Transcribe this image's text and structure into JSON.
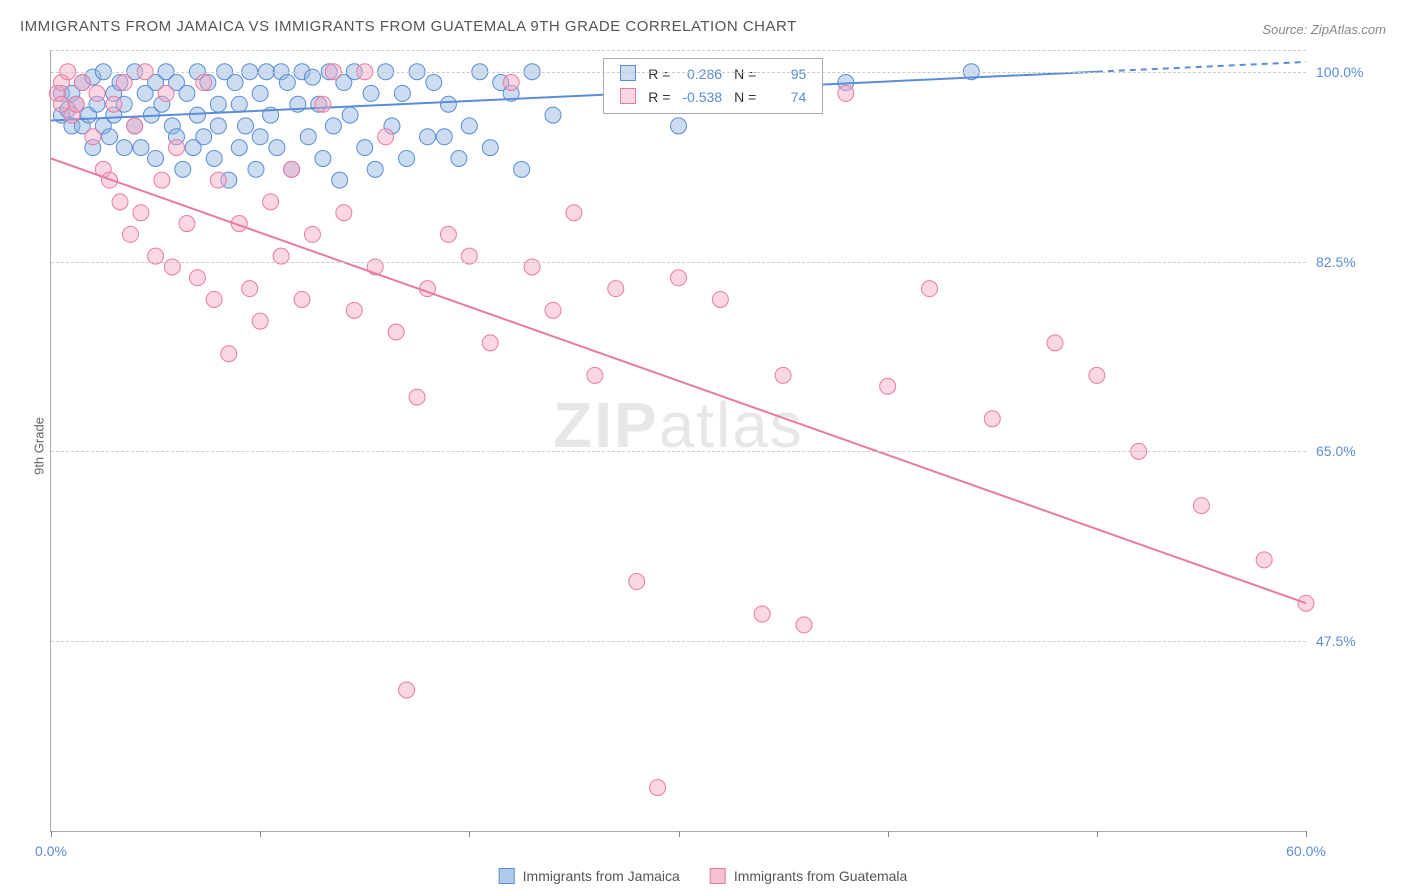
{
  "title": "IMMIGRANTS FROM JAMAICA VS IMMIGRANTS FROM GUATEMALA 9TH GRADE CORRELATION CHART",
  "source_label": "Source:",
  "source_name": "ZipAtlas.com",
  "ylabel": "9th Grade",
  "watermark": {
    "bold": "ZIP",
    "rest": "atlas"
  },
  "chart": {
    "type": "scatter",
    "xlim": [
      0,
      60
    ],
    "ylim": [
      30,
      102
    ],
    "x_ticks": [
      0,
      10,
      20,
      30,
      40,
      50,
      60
    ],
    "x_tick_labels_shown": {
      "0": "0.0%",
      "60": "60.0%"
    },
    "y_gridlines": [
      47.5,
      65.0,
      82.5,
      100.0
    ],
    "y_tick_labels": [
      "47.5%",
      "65.0%",
      "82.5%",
      "100.0%"
    ],
    "background_color": "#ffffff",
    "grid_color": "#cccccc",
    "axis_color": "#aaaaaa",
    "tick_label_color": "#5b8dd6",
    "marker_radius": 8,
    "marker_opacity": 0.45,
    "line_width": 2,
    "series": [
      {
        "name": "Immigrants from Jamaica",
        "color": "#8db3e2",
        "stroke": "#5b8dd6",
        "fill": "rgba(141,179,226,0.45)",
        "R": 0.286,
        "N": 95,
        "trend": {
          "x1": 0,
          "y1": 95.5,
          "x2": 50,
          "y2": 100,
          "dash_extend_to": 60
        },
        "points": [
          [
            0.5,
            96
          ],
          [
            0.5,
            98
          ],
          [
            0.8,
            96.5
          ],
          [
            1,
            98
          ],
          [
            1,
            95
          ],
          [
            1.2,
            97
          ],
          [
            1.5,
            99
          ],
          [
            1.5,
            95
          ],
          [
            1.8,
            96
          ],
          [
            2,
            99.5
          ],
          [
            2,
            93
          ],
          [
            2.2,
            97
          ],
          [
            2.5,
            95
          ],
          [
            2.5,
            100
          ],
          [
            2.8,
            94
          ],
          [
            3,
            98
          ],
          [
            3,
            96
          ],
          [
            3.3,
            99
          ],
          [
            3.5,
            93
          ],
          [
            3.5,
            97
          ],
          [
            4,
            100
          ],
          [
            4,
            95
          ],
          [
            4.3,
            93
          ],
          [
            4.5,
            98
          ],
          [
            4.8,
            96
          ],
          [
            5,
            99
          ],
          [
            5,
            92
          ],
          [
            5.3,
            97
          ],
          [
            5.5,
            100
          ],
          [
            5.8,
            95
          ],
          [
            6,
            94
          ],
          [
            6,
            99
          ],
          [
            6.3,
            91
          ],
          [
            6.5,
            98
          ],
          [
            6.8,
            93
          ],
          [
            7,
            100
          ],
          [
            7,
            96
          ],
          [
            7.3,
            94
          ],
          [
            7.5,
            99
          ],
          [
            7.8,
            92
          ],
          [
            8,
            97
          ],
          [
            8,
            95
          ],
          [
            8.3,
            100
          ],
          [
            8.5,
            90
          ],
          [
            8.8,
            99
          ],
          [
            9,
            93
          ],
          [
            9,
            97
          ],
          [
            9.3,
            95
          ],
          [
            9.5,
            100
          ],
          [
            9.8,
            91
          ],
          [
            10,
            98
          ],
          [
            10,
            94
          ],
          [
            10.3,
            100
          ],
          [
            10.5,
            96
          ],
          [
            10.8,
            93
          ],
          [
            11,
            100
          ],
          [
            11.3,
            99
          ],
          [
            11.5,
            91
          ],
          [
            11.8,
            97
          ],
          [
            12,
            100
          ],
          [
            12.3,
            94
          ],
          [
            12.5,
            99.5
          ],
          [
            12.8,
            97
          ],
          [
            13,
            92
          ],
          [
            13.3,
            100
          ],
          [
            13.5,
            95
          ],
          [
            13.8,
            90
          ],
          [
            14,
            99
          ],
          [
            14.3,
            96
          ],
          [
            14.5,
            100
          ],
          [
            15,
            93
          ],
          [
            15.3,
            98
          ],
          [
            15.5,
            91
          ],
          [
            16,
            100
          ],
          [
            16.3,
            95
          ],
          [
            16.8,
            98
          ],
          [
            17,
            92
          ],
          [
            17.5,
            100
          ],
          [
            18,
            94
          ],
          [
            18.3,
            99
          ],
          [
            18.8,
            94
          ],
          [
            19,
            97
          ],
          [
            19.5,
            92
          ],
          [
            20,
            95
          ],
          [
            20.5,
            100
          ],
          [
            21,
            93
          ],
          [
            21.5,
            99
          ],
          [
            22,
            98
          ],
          [
            22.5,
            91
          ],
          [
            23,
            100
          ],
          [
            24,
            96
          ],
          [
            30,
            95
          ],
          [
            35,
            97
          ],
          [
            38,
            99
          ],
          [
            44,
            100
          ]
        ]
      },
      {
        "name": "Immigrants from Guatemala",
        "color": "#f4a6c0",
        "stroke": "#e87ba4",
        "fill": "rgba(244,166,192,0.45)",
        "R": -0.538,
        "N": 74,
        "trend": {
          "x1": 0,
          "y1": 92,
          "x2": 60,
          "y2": 51
        },
        "points": [
          [
            0.3,
            98
          ],
          [
            0.5,
            97
          ],
          [
            0.5,
            99
          ],
          [
            0.8,
            100
          ],
          [
            1,
            96
          ],
          [
            1.2,
            97
          ],
          [
            1.5,
            99
          ],
          [
            2,
            94
          ],
          [
            2.2,
            98
          ],
          [
            2.5,
            91
          ],
          [
            2.8,
            90
          ],
          [
            3,
            97
          ],
          [
            3.3,
            88
          ],
          [
            3.5,
            99
          ],
          [
            3.8,
            85
          ],
          [
            4,
            95
          ],
          [
            4.3,
            87
          ],
          [
            4.5,
            100
          ],
          [
            5,
            83
          ],
          [
            5.3,
            90
          ],
          [
            5.5,
            98
          ],
          [
            5.8,
            82
          ],
          [
            6,
            93
          ],
          [
            6.5,
            86
          ],
          [
            7,
            81
          ],
          [
            7.3,
            99
          ],
          [
            7.8,
            79
          ],
          [
            8,
            90
          ],
          [
            8.5,
            74
          ],
          [
            9,
            86
          ],
          [
            9.5,
            80
          ],
          [
            10,
            77
          ],
          [
            10.5,
            88
          ],
          [
            11,
            83
          ],
          [
            11.5,
            91
          ],
          [
            12,
            79
          ],
          [
            12.5,
            85
          ],
          [
            13,
            97
          ],
          [
            13.5,
            100
          ],
          [
            14,
            87
          ],
          [
            14.5,
            78
          ],
          [
            15,
            100
          ],
          [
            15.5,
            82
          ],
          [
            16,
            94
          ],
          [
            16.5,
            76
          ],
          [
            17,
            43
          ],
          [
            17.5,
            70
          ],
          [
            18,
            80
          ],
          [
            19,
            85
          ],
          [
            20,
            83
          ],
          [
            21,
            75
          ],
          [
            22,
            99
          ],
          [
            23,
            82
          ],
          [
            24,
            78
          ],
          [
            25,
            87
          ],
          [
            26,
            72
          ],
          [
            27,
            80
          ],
          [
            28,
            53
          ],
          [
            29,
            34
          ],
          [
            30,
            81
          ],
          [
            32,
            79
          ],
          [
            34,
            50
          ],
          [
            35,
            72
          ],
          [
            36,
            49
          ],
          [
            38,
            98
          ],
          [
            40,
            71
          ],
          [
            42,
            80
          ],
          [
            45,
            68
          ],
          [
            48,
            75
          ],
          [
            50,
            72
          ],
          [
            52,
            65
          ],
          [
            55,
            60
          ],
          [
            58,
            55
          ],
          [
            60,
            51
          ]
        ]
      }
    ],
    "stats_box": {
      "left_pct": 44,
      "top_pct": 1
    }
  },
  "legend": {
    "items": [
      {
        "label": "Immigrants from Jamaica",
        "fill": "rgba(141,179,226,0.7)",
        "border": "#5b8dd6"
      },
      {
        "label": "Immigrants from Guatemala",
        "fill": "rgba(244,166,192,0.7)",
        "border": "#e87ba4"
      }
    ]
  }
}
